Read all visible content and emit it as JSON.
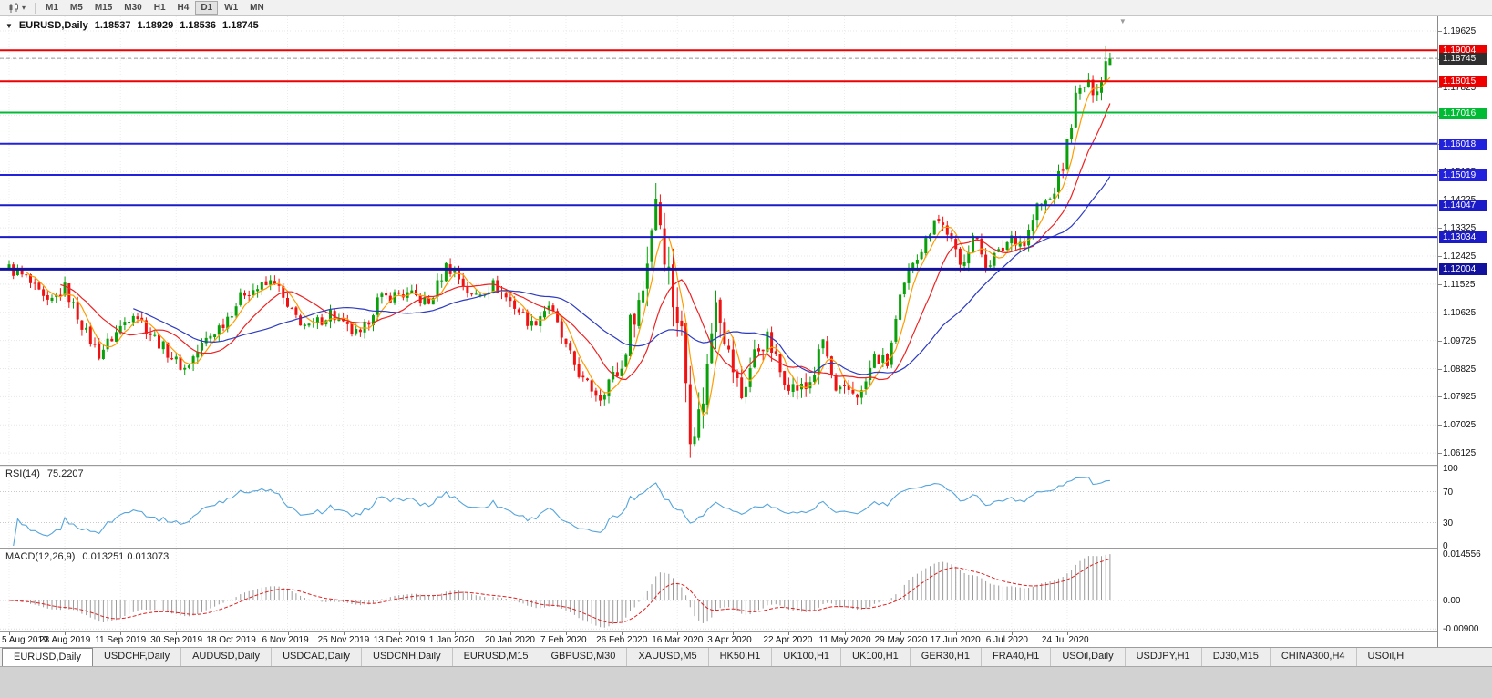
{
  "icons": {
    "dropdown_caret": "▾",
    "symbol_arrow": "▼",
    "shift_marker": "▼"
  },
  "toolbar": {
    "periods": [
      "M1",
      "M5",
      "M15",
      "M30",
      "H1",
      "H4",
      "D1",
      "W1",
      "MN"
    ],
    "active_period": "D1"
  },
  "chart": {
    "header": {
      "symbol": "EURUSD,Daily",
      "open": "1.18537",
      "high": "1.18929",
      "low": "1.18536",
      "close": "1.18745"
    },
    "price_axis": {
      "ticks": [
        "1.19625",
        "1.18725",
        "1.17825",
        "1.16925",
        "1.16025",
        "1.15125",
        "1.14225",
        "1.13325",
        "1.12425",
        "1.11525",
        "1.10625",
        "1.09725",
        "1.08825",
        "1.07925",
        "1.07025",
        "1.06125"
      ]
    },
    "current_price": {
      "label": "1.18745",
      "value": 1.18745
    }
  },
  "indicators": {
    "rsi": {
      "name": "RSI(14)",
      "period": 14,
      "value": "75.2207",
      "levels": [
        70,
        30
      ],
      "range": [
        0,
        100
      ],
      "axis_ticks": [
        "100",
        "70",
        "30",
        "0"
      ]
    },
    "macd": {
      "name": "MACD(12,26,9)",
      "value": "0.013251 0.013073",
      "macd": 0.013251,
      "signal": 0.013073,
      "range": [
        -0.0095,
        0.0152
      ],
      "axis_ticks": [
        "0.014556",
        "0.00",
        "-0.00900"
      ]
    }
  },
  "tabs": [
    "EURUSD,Daily",
    "USDCHF,Daily",
    "AUDUSD,Daily",
    "USDCAD,Daily",
    "USDCNH,Daily",
    "EURUSD,M15",
    "GBPUSD,M30",
    "XAUUSD,M5",
    "HK50,H1",
    "UK100,H1",
    "UK100,H1",
    "GER30,H1",
    "FRA40,H1",
    "USOil,Daily",
    "USDJPY,H1",
    "DJ30,M15",
    "CHINA300,H4",
    "USOil,H"
  ],
  "active_tab": "EURUSD,Daily",
  "chart_data": {
    "type": "candlestick",
    "title": "EURUSD,Daily",
    "timeframe": "D1",
    "count": 258,
    "label_step": 13,
    "x_labels": [
      "5 Aug 2019",
      "23 Aug 2019",
      "11 Sep 2019",
      "30 Sep 2019",
      "18 Oct 2019",
      "6 Nov 2019",
      "25 Nov 2019",
      "13 Dec 2019",
      "1 Jan 2020",
      "20 Jan 2020",
      "7 Feb 2020",
      "26 Feb 2020",
      "16 Mar 2020",
      "3 Apr 2020",
      "22 Apr 2020",
      "11 May 2020",
      "29 May 2020",
      "17 Jun 2020",
      "6 Jul 2020",
      "24 Jul 2020"
    ],
    "price_view": [
      1.0575,
      1.2009
    ],
    "current_ohlc": {
      "open": 1.18537,
      "high": 1.18929,
      "low": 1.18536,
      "close": 1.18745
    },
    "bar_overrides": {
      "256": {
        "high": 1.1916
      }
    },
    "anchors": [
      [
        0,
        1.1203
      ],
      [
        4,
        1.117
      ],
      [
        9,
        1.1085
      ],
      [
        13,
        1.114
      ],
      [
        18,
        1.0995
      ],
      [
        21,
        1.093
      ],
      [
        26,
        1.1015
      ],
      [
        29,
        1.1068
      ],
      [
        33,
        1.0995
      ],
      [
        39,
        1.0905
      ],
      [
        41,
        1.0882
      ],
      [
        46,
        1.0975
      ],
      [
        50,
        1.103
      ],
      [
        55,
        1.1128
      ],
      [
        60,
        1.1148
      ],
      [
        62,
        1.1165
      ],
      [
        65,
        1.1072
      ],
      [
        70,
        1.101
      ],
      [
        75,
        1.1062
      ],
      [
        78,
        1.1018
      ],
      [
        82,
        1.0984
      ],
      [
        86,
        1.11
      ],
      [
        91,
        1.1122
      ],
      [
        95,
        1.1112
      ],
      [
        98,
        1.1088
      ],
      [
        102,
        1.121
      ],
      [
        104,
        1.1192
      ],
      [
        108,
        1.1112
      ],
      [
        113,
        1.115
      ],
      [
        117,
        1.1098
      ],
      [
        122,
        1.1022
      ],
      [
        126,
        1.1088
      ],
      [
        130,
        1.0948
      ],
      [
        134,
        1.0842
      ],
      [
        138,
        1.0792
      ],
      [
        140,
        1.0845
      ],
      [
        143,
        1.088
      ],
      [
        145,
        1.1025
      ],
      [
        148,
        1.1135
      ],
      [
        151,
        1.1445
      ],
      [
        153,
        1.127
      ],
      [
        155,
        1.1105
      ],
      [
        157,
        1.0992
      ],
      [
        159,
        1.07
      ],
      [
        161,
        1.0725
      ],
      [
        163,
        1.088
      ],
      [
        165,
        1.1135
      ],
      [
        168,
        1.0925
      ],
      [
        171,
        1.0792
      ],
      [
        174,
        1.093
      ],
      [
        177,
        1.0978
      ],
      [
        180,
        1.0872
      ],
      [
        183,
        1.0822
      ],
      [
        186,
        1.0818
      ],
      [
        188,
        1.0872
      ],
      [
        190,
        1.0975
      ],
      [
        193,
        1.0798
      ],
      [
        196,
        1.0812
      ],
      [
        199,
        1.0802
      ],
      [
        202,
        1.0918
      ],
      [
        205,
        1.0898
      ],
      [
        208,
        1.1098
      ],
      [
        211,
        1.1232
      ],
      [
        214,
        1.1288
      ],
      [
        216,
        1.1372
      ],
      [
        219,
        1.1322
      ],
      [
        222,
        1.1208
      ],
      [
        225,
        1.1308
      ],
      [
        228,
        1.1222
      ],
      [
        231,
        1.1248
      ],
      [
        234,
        1.1308
      ],
      [
        237,
        1.1282
      ],
      [
        240,
        1.1398
      ],
      [
        243,
        1.1422
      ],
      [
        246,
        1.1528
      ],
      [
        249,
        1.1748
      ],
      [
        251,
        1.1788
      ],
      [
        253,
        1.1778
      ],
      [
        255,
        1.1802
      ],
      [
        256,
        1.1862
      ],
      [
        257,
        1.18745
      ]
    ],
    "volatility": [
      [
        0,
        0.004
      ],
      [
        138,
        0.004
      ],
      [
        146,
        0.008
      ],
      [
        151,
        0.012
      ],
      [
        163,
        0.012
      ],
      [
        168,
        0.008
      ],
      [
        174,
        0.0058
      ],
      [
        205,
        0.0046
      ],
      [
        244,
        0.005
      ],
      [
        257,
        0.0048
      ]
    ],
    "moving_averages": [
      {
        "period": 5,
        "color": "#ff9c00"
      },
      {
        "period": 13,
        "color": "#ee2222"
      },
      {
        "period": 30,
        "color": "#2d3bc1"
      }
    ],
    "horizontal_lines": [
      {
        "price": 1.19004,
        "label": "1.19004",
        "color": "#ee0000",
        "width": 2
      },
      {
        "price": 1.18015,
        "label": "1.18015",
        "color": "#ee0000",
        "width": 2
      },
      {
        "price": 1.17016,
        "label": "1.17016",
        "color": "#00bb33",
        "width": 2
      },
      {
        "price": 1.16018,
        "label": "1.16018",
        "color": "#2222dd",
        "width": 2
      },
      {
        "price": 1.15019,
        "label": "1.15019",
        "color": "#2222dd",
        "width": 2
      },
      {
        "price": 1.14047,
        "label": "1.14047",
        "color": "#1b1bc8",
        "width": 2
      },
      {
        "price": 1.13034,
        "label": "1.13034",
        "color": "#1b1bc8",
        "width": 2
      },
      {
        "price": 1.12004,
        "label": "1.12004",
        "color": "#12129e",
        "width": 3
      }
    ],
    "colors": {
      "up": "#09a009",
      "down": "#f01212",
      "rsi": "#55a5dd",
      "macd_hist": "#9b9b9b",
      "macd_signal": "#e02020",
      "grid": "#e7e7e7"
    }
  }
}
